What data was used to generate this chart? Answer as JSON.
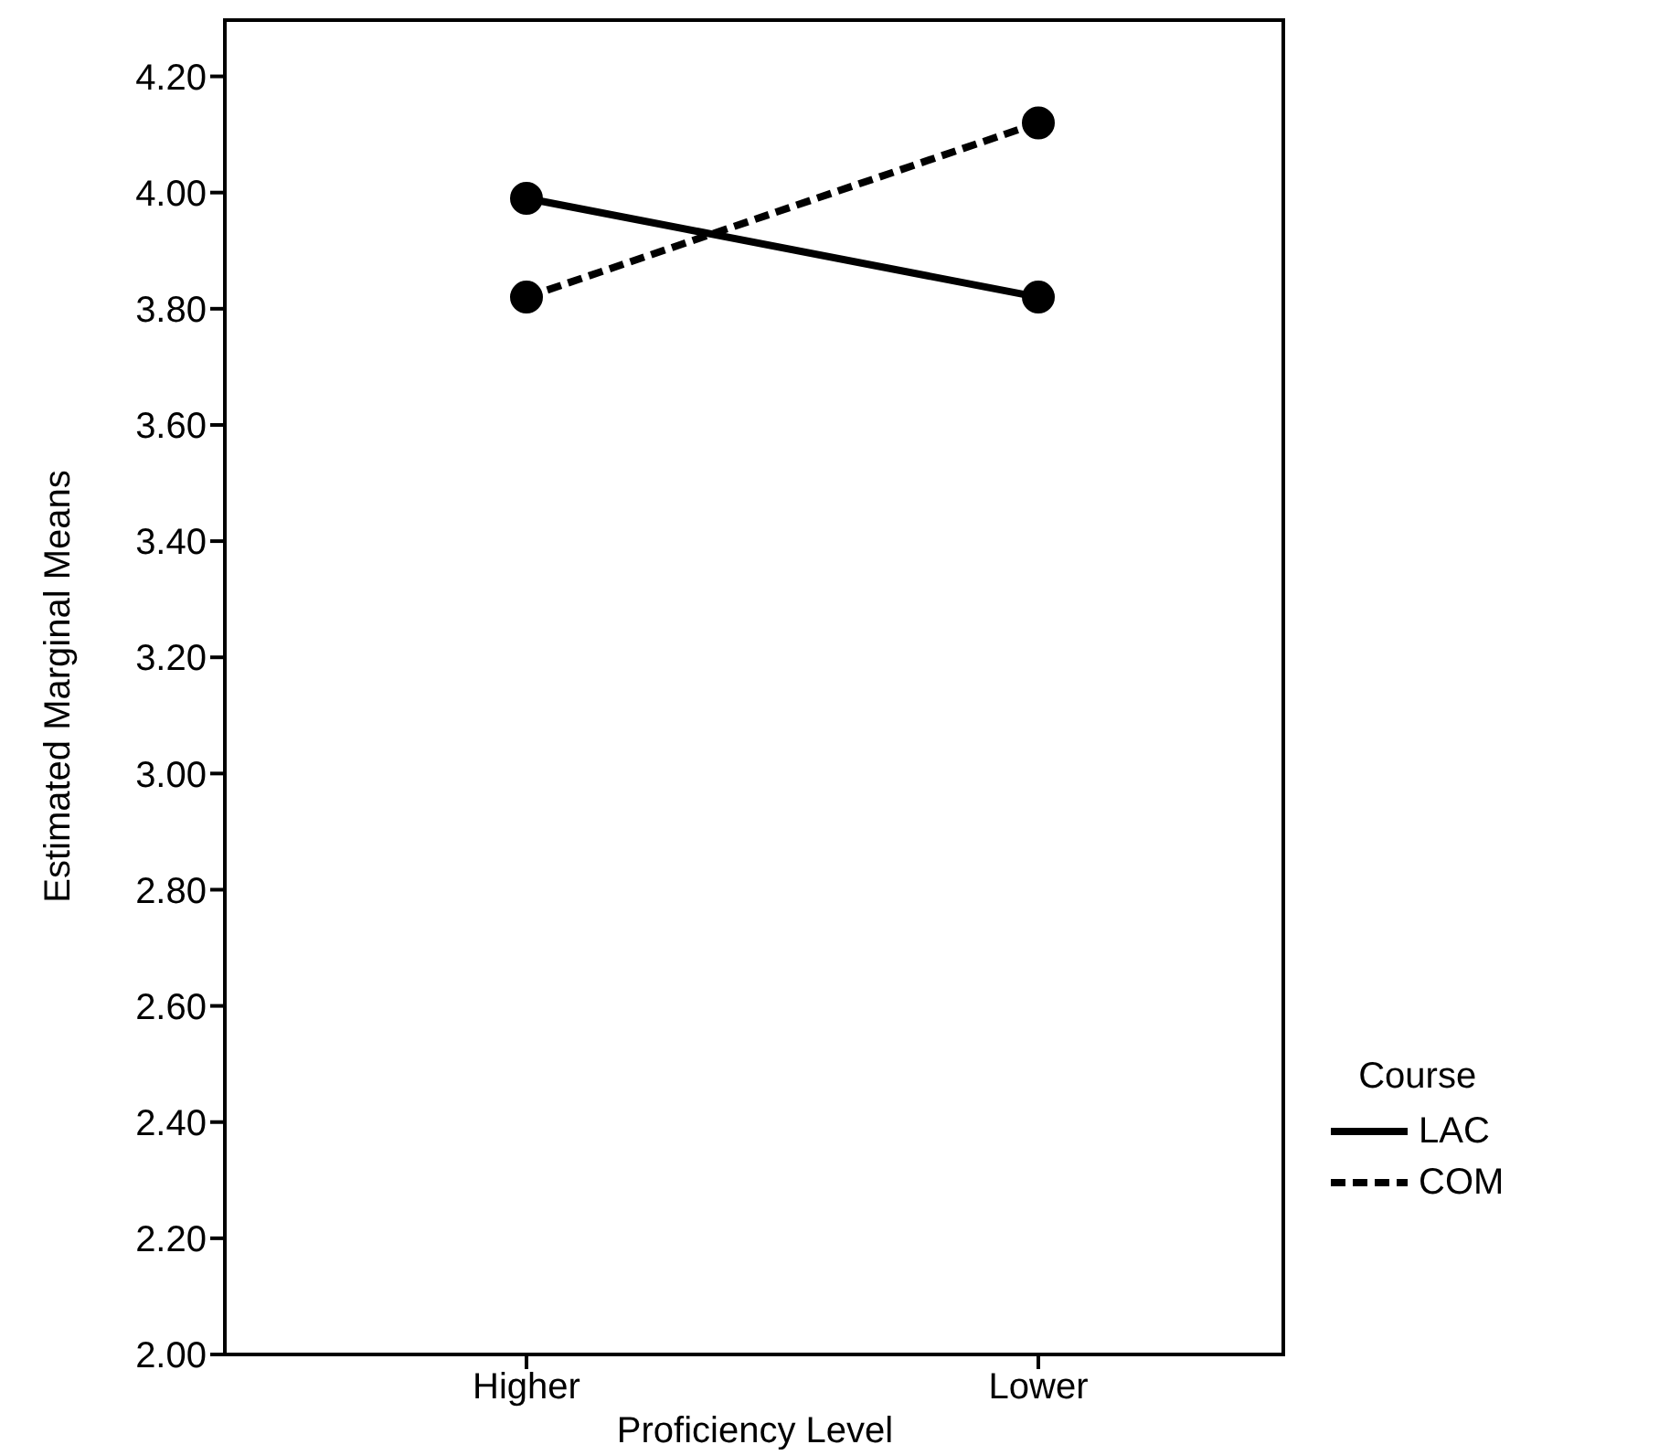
{
  "chart_data": {
    "type": "line",
    "xlabel": "Proficiency Level",
    "ylabel": "Estimated Marginal Means",
    "legend_title": "Course",
    "categories": [
      "Higher",
      "Lower"
    ],
    "series": [
      {
        "name": "LAC",
        "color": "#000000",
        "values": [
          3.99,
          3.82
        ],
        "line_style": "solid"
      },
      {
        "name": "COM",
        "color": "#000000",
        "values": [
          3.82,
          4.12
        ],
        "line_style": "dashed"
      }
    ],
    "ylim": [
      2.0,
      4.3
    ],
    "yticks": [
      {
        "value": 2.0,
        "label": "2.00"
      },
      {
        "value": 2.2,
        "label": "2.20"
      },
      {
        "value": 2.4,
        "label": "2.40"
      },
      {
        "value": 2.6,
        "label": "2.60"
      },
      {
        "value": 2.8,
        "label": "2.80"
      },
      {
        "value": 3.0,
        "label": "3.00"
      },
      {
        "value": 3.2,
        "label": "3.20"
      },
      {
        "value": 3.4,
        "label": "3.40"
      },
      {
        "value": 3.6,
        "label": "3.60"
      },
      {
        "value": 3.8,
        "label": "3.80"
      },
      {
        "value": 4.0,
        "label": "4.00"
      },
      {
        "value": 4.2,
        "label": "4.20"
      }
    ],
    "grid": false,
    "legend": "right",
    "marker": "circle"
  }
}
